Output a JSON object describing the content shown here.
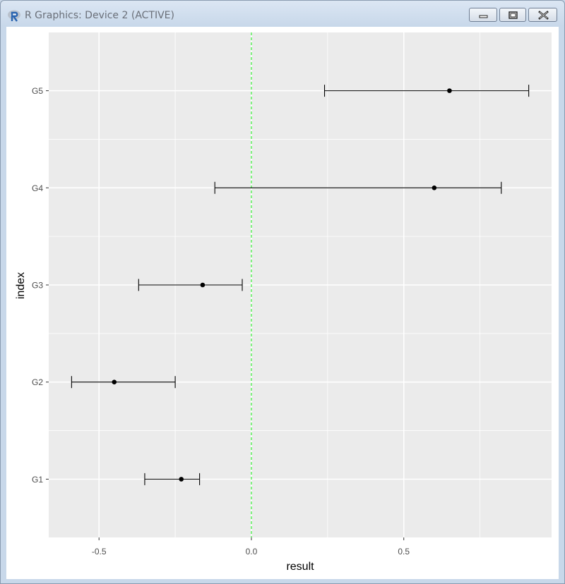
{
  "window": {
    "title": "R Graphics: Device 2 (ACTIVE)",
    "icons": {
      "app": "r-logo-icon",
      "minimize": "minimize-icon",
      "maximize": "maximize-icon",
      "close": "close-icon"
    }
  },
  "chart_data": {
    "type": "errorbar",
    "orientation": "horizontal",
    "title": "",
    "xlabel": "result",
    "ylabel": "index",
    "categories": [
      "G1",
      "G2",
      "G3",
      "G4",
      "G5"
    ],
    "points": [
      {
        "label": "G1",
        "value": -0.23,
        "lower": -0.35,
        "upper": -0.17
      },
      {
        "label": "G2",
        "value": -0.45,
        "lower": -0.59,
        "upper": -0.25
      },
      {
        "label": "G3",
        "value": -0.16,
        "lower": -0.37,
        "upper": -0.03
      },
      {
        "label": "G4",
        "value": 0.6,
        "lower": -0.12,
        "upper": 0.82
      },
      {
        "label": "G5",
        "value": 0.65,
        "lower": 0.24,
        "upper": 0.91
      }
    ],
    "xlim": [
      -0.665,
      0.985
    ],
    "x_ticks": [
      -0.5,
      0.0,
      0.5
    ],
    "x_tick_labels": [
      "-0.5",
      "0.0",
      "0.5"
    ],
    "reference_line": {
      "x": 0,
      "style": "dashed",
      "color": "#33ee33"
    },
    "grid": true,
    "colors": {
      "panel": "#ebebeb",
      "grid": "#ffffff",
      "marks": "#000000"
    },
    "legend": "none"
  }
}
